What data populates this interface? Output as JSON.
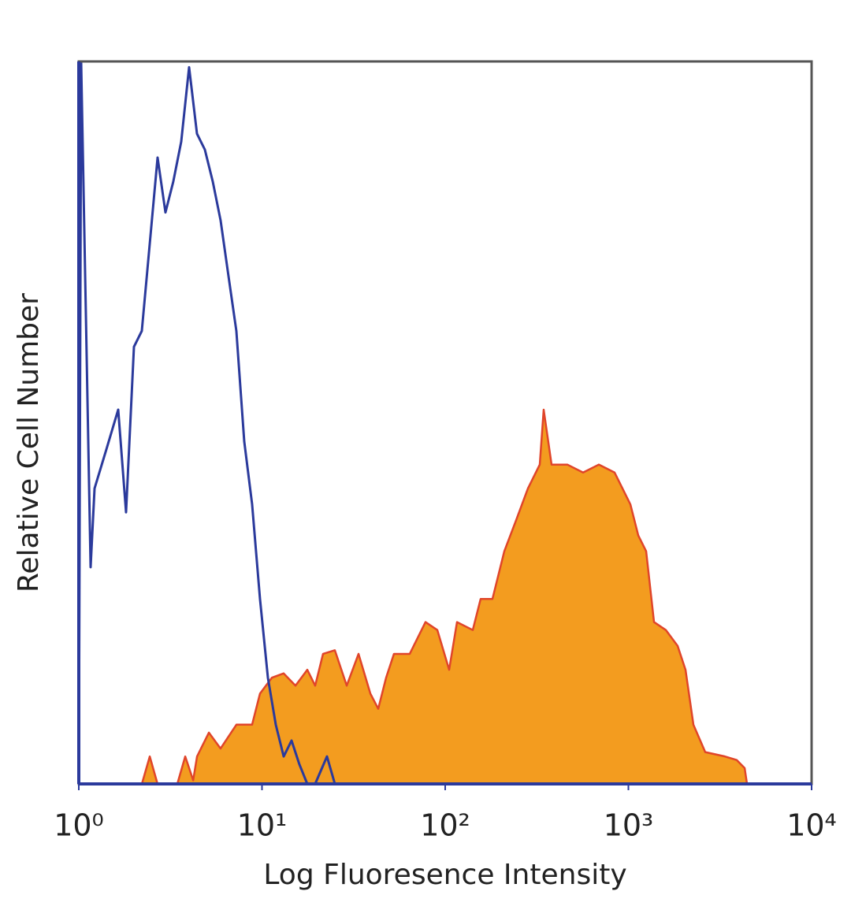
{
  "chart_data": {
    "type": "histogram-overlay",
    "xlabel": "Log Fluoresence Intensity",
    "ylabel": "Relative Cell Number",
    "xscale": "log",
    "xlim": [
      1,
      10000
    ],
    "ylim": [
      0,
      100
    ],
    "xticks": [
      {
        "value": 1,
        "label": "10⁰"
      },
      {
        "value": 10,
        "label": "10¹"
      },
      {
        "value": 100,
        "label": "10²"
      },
      {
        "value": 1000,
        "label": "10³"
      },
      {
        "value": 10000,
        "label": "10⁴"
      }
    ],
    "series": [
      {
        "color": "#f39c1f",
        "edge_color": "#e0452a",
        "filled": true,
        "x": [
          1,
          2.21,
          2.44,
          2.69,
          3.45,
          3.81,
          4.21,
          4.42,
          5.13,
          5.94,
          7.25,
          8.83,
          9.75,
          11.32,
          13.13,
          15.23,
          17.67,
          19.51,
          21.54,
          24.99,
          29.0,
          33.65,
          39.04,
          43.1,
          47.58,
          52.53,
          64.03,
          78.07,
          90.6,
          105.1,
          116.0,
          141.4,
          156.1,
          181.1,
          210.2,
          243.8,
          282.9,
          328.2,
          344.8,
          380.7,
          464.2,
          565.8,
          689.7,
          840.8,
          928.4,
          1025,
          1132,
          1250,
          1380,
          1601,
          1857,
          2050,
          2264,
          2627,
          3365,
          3904,
          4310,
          4440,
          10000
        ],
        "values": [
          0,
          0,
          3.8,
          0,
          0,
          3.8,
          0.5,
          3.8,
          7.1,
          4.9,
          8.2,
          8.2,
          12.5,
          14.7,
          15.3,
          13.6,
          15.8,
          13.6,
          18.0,
          18.5,
          13.6,
          18.0,
          12.5,
          10.4,
          14.7,
          18.0,
          18.0,
          22.4,
          21.3,
          15.8,
          22.4,
          21.3,
          25.6,
          25.6,
          32.2,
          36.5,
          40.9,
          44.2,
          51.8,
          44.2,
          44.2,
          43.1,
          44.2,
          43.1,
          40.9,
          38.7,
          34.4,
          32.2,
          22.4,
          21.3,
          19.1,
          15.8,
          8.2,
          4.4,
          3.8,
          3.3,
          2.2,
          0,
          0
        ]
      },
      {
        "color": "#2b3a9c",
        "filled": false,
        "x": [
          1,
          1.03,
          1.16,
          1.219,
          1.414,
          1.641,
          1.811,
          2.0,
          2.208,
          2.438,
          2.692,
          2.972,
          3.281,
          3.623,
          4.0,
          4.416,
          4.876,
          5.383,
          5.943,
          6.562,
          7.245,
          8.0,
          8.832,
          9.752,
          10.77,
          11.89,
          13.13,
          14.5,
          16.0,
          17.67,
          19.51,
          22.63,
          24.99,
          10000
        ],
        "values": [
          0,
          100,
          30.0,
          40.9,
          46.3,
          51.8,
          37.6,
          60.5,
          62.7,
          74.7,
          86.7,
          79.1,
          83.4,
          88.9,
          99.2,
          90.0,
          87.8,
          83.4,
          78.0,
          70.3,
          62.7,
          47.4,
          38.7,
          25.6,
          14.7,
          8.2,
          3.8,
          6.0,
          2.7,
          0,
          0,
          3.8,
          0,
          0
        ]
      }
    ]
  }
}
